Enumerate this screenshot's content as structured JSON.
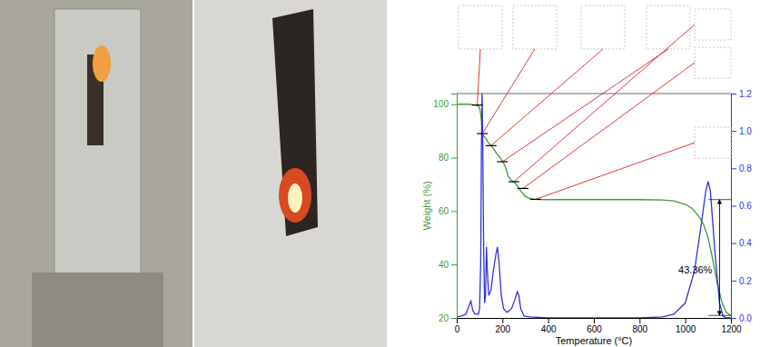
{
  "chart_data": {
    "type": "line",
    "x_label": "Temperature (°C)",
    "y_label": "Weight (%)",
    "xlim": [
      0,
      1200
    ],
    "xticks": [
      0,
      200,
      400,
      600,
      800,
      1000,
      1200
    ],
    "ylim": [
      20,
      104
    ],
    "yticks": [
      20,
      40,
      60,
      80,
      100
    ],
    "y2lim": [
      0,
      1.2
    ],
    "y2ticks": [
      {
        "value": 0,
        "label": "0.0"
      },
      {
        "value": 0.2,
        "label": "0.2"
      },
      {
        "value": 0.4,
        "label": "0.4"
      },
      {
        "value": 0.6,
        "label": "0.6"
      },
      {
        "value": 0.8,
        "label": "0.8"
      },
      {
        "value": 1.0,
        "label": "1.0"
      },
      {
        "value": 1.2,
        "label": "1.2"
      }
    ],
    "series": [
      {
        "color": "#3c9a3c",
        "x": [
          0,
          50,
          80,
          95,
          102,
          108,
          112,
          118,
          125,
          135,
          145,
          160,
          175,
          190,
          205,
          215,
          225,
          240,
          255,
          265,
          280,
          300,
          320,
          340,
          400,
          600,
          800,
          900,
          950,
          1000,
          1030,
          1060,
          1080,
          1100,
          1120,
          1140,
          1160,
          1180,
          1200
        ],
        "values": [
          100,
          100,
          99.7,
          99.4,
          98,
          94,
          89,
          88,
          87.5,
          86,
          85,
          83.5,
          81.5,
          80,
          78,
          76,
          73,
          71.5,
          70.5,
          69.5,
          67.5,
          65.5,
          64.7,
          64.4,
          64.3,
          64.3,
          64.3,
          64.2,
          63.8,
          62.5,
          61,
          58,
          55,
          50,
          42,
          33,
          26,
          22,
          20.94
        ]
      },
      {
        "color": "#3434dc",
        "axis": "y2",
        "x": [
          0,
          20,
          40,
          55,
          62,
          70,
          80,
          95,
          100,
          105,
          108,
          111,
          114,
          118,
          122,
          126,
          130,
          134,
          140,
          150,
          160,
          170,
          178,
          185,
          195,
          205,
          220,
          240,
          255,
          265,
          272,
          280,
          295,
          320,
          400,
          600,
          800,
          900,
          950,
          1000,
          1040,
          1070,
          1090,
          1100,
          1110,
          1130,
          1150,
          1165,
          1180,
          1200
        ],
        "values": [
          0.005,
          0.01,
          0.02,
          0.07,
          0.09,
          0.04,
          0.02,
          0.02,
          0.05,
          0.3,
          0.9,
          1.2,
          0.9,
          0.35,
          0.08,
          0.12,
          0.38,
          0.25,
          0.12,
          0.15,
          0.25,
          0.33,
          0.38,
          0.3,
          0.12,
          0.05,
          0.03,
          0.05,
          0.1,
          0.14,
          0.12,
          0.05,
          0.01,
          0.005,
          0,
          0,
          0,
          0.005,
          0.02,
          0.08,
          0.25,
          0.5,
          0.68,
          0.73,
          0.68,
          0.35,
          0.08,
          0.01,
          0,
          0
        ]
      }
    ],
    "step_points": [
      {
        "x": 90,
        "y": 99.7
      },
      {
        "x": 112,
        "y": 89
      },
      {
        "x": 150,
        "y": 84.5
      },
      {
        "x": 200,
        "y": 78.5
      },
      {
        "x": 250,
        "y": 71
      },
      {
        "x": 290,
        "y": 68.5
      },
      {
        "x": 345,
        "y": 64.4
      }
    ],
    "annotations": [
      {
        "text": "43.36%",
        "x": 1150,
        "y": 64.3,
        "y_end": 20.94
      }
    ]
  }
}
